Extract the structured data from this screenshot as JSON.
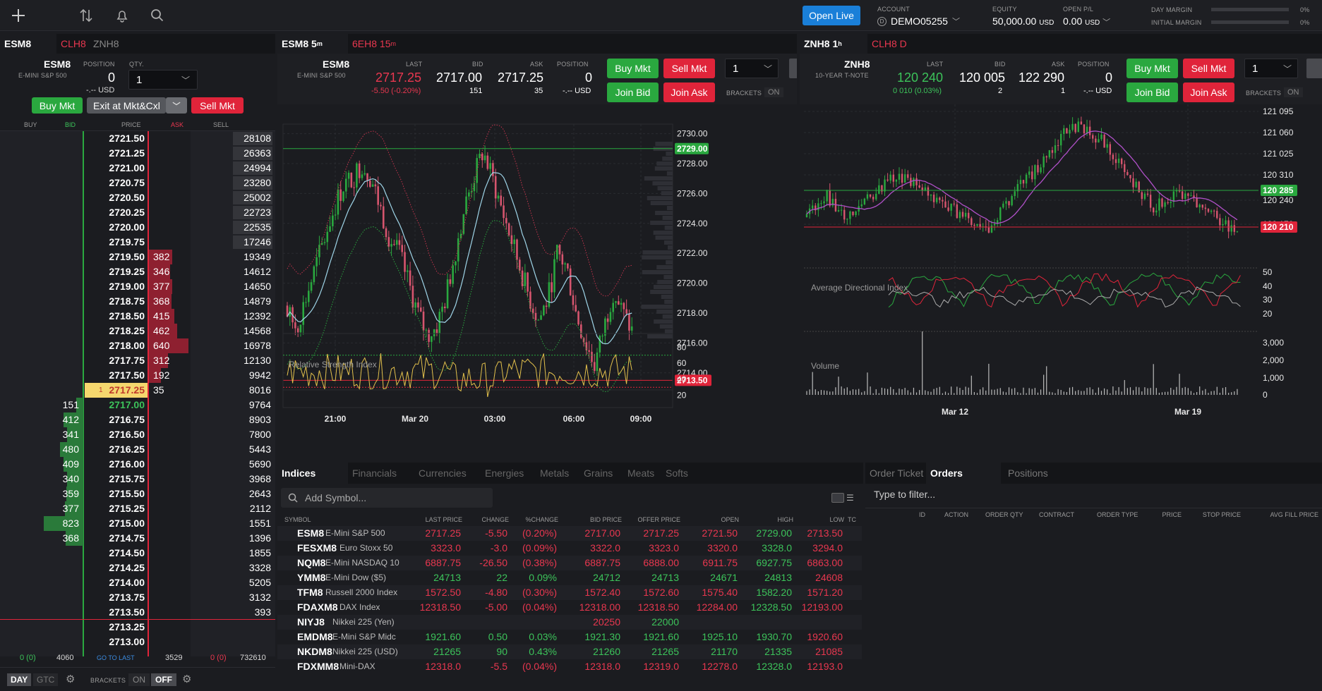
{
  "topbar": {
    "open_live": "Open Live",
    "account_label": "ACCOUNT",
    "account": "DEMO05255",
    "equity_label": "EQUITY",
    "equity": "50,000.00",
    "equity_unit": "USD",
    "openpl_label": "OPEN P/L",
    "openpl": "0.00",
    "openpl_unit": "USD",
    "day_margin_label": "DAY MARGIN",
    "day_margin_pct": "0%",
    "init_margin_label": "INITIAL MARGIN",
    "init_margin_pct": "0%"
  },
  "ladder": {
    "tabs": [
      "ESM8",
      "CLH8",
      "ZNH8"
    ],
    "symbol": "ESM8",
    "desc": "E-MINI S&P 500",
    "position_label": "POSITION",
    "position": "0",
    "position_usd": "-.-- USD",
    "qty_label": "QTY.",
    "qty": "1",
    "buy_mkt": "Buy Mkt",
    "exit": "Exit at Mkt&Cxl",
    "sell_mkt": "Sell Mkt",
    "headers": [
      "BUY",
      "BID",
      "PRICE",
      "ASK",
      "SELL"
    ],
    "rows": [
      {
        "price": "2721.50",
        "ask": "",
        "bid": "",
        "sell": "28108"
      },
      {
        "price": "2721.25",
        "ask": "",
        "bid": "",
        "sell": "26363"
      },
      {
        "price": "2721.00",
        "ask": "",
        "bid": "",
        "sell": "24994"
      },
      {
        "price": "2720.75",
        "ask": "",
        "bid": "",
        "sell": "23280"
      },
      {
        "price": "2720.50",
        "ask": "",
        "bid": "",
        "sell": "25002"
      },
      {
        "price": "2720.25",
        "ask": "",
        "bid": "",
        "sell": "22723"
      },
      {
        "price": "2720.00",
        "ask": "",
        "bid": "",
        "sell": "22535"
      },
      {
        "price": "2719.75",
        "ask": "",
        "bid": "",
        "sell": "17246"
      },
      {
        "price": "2719.50",
        "ask": "382",
        "bid": "",
        "sell": "19349"
      },
      {
        "price": "2719.25",
        "ask": "346",
        "bid": "",
        "sell": "14612"
      },
      {
        "price": "2719.00",
        "ask": "377",
        "bid": "",
        "sell": "14650"
      },
      {
        "price": "2718.75",
        "ask": "368",
        "bid": "",
        "sell": "14879"
      },
      {
        "price": "2718.50",
        "ask": "415",
        "bid": "",
        "sell": "12392"
      },
      {
        "price": "2718.25",
        "ask": "462",
        "bid": "",
        "sell": "14568"
      },
      {
        "price": "2718.00",
        "ask": "640",
        "bid": "",
        "sell": "16978"
      },
      {
        "price": "2717.75",
        "ask": "312",
        "bid": "",
        "sell": "12130"
      },
      {
        "price": "2717.50",
        "ask": "192",
        "bid": "",
        "sell": "9942"
      },
      {
        "price": "2717.25",
        "ask": "35",
        "bid": "",
        "sell": "8016",
        "last": true,
        "lastqty": "1"
      },
      {
        "price": "2717.00",
        "ask": "",
        "bid": "151",
        "sell": "9764"
      },
      {
        "price": "2716.75",
        "ask": "",
        "bid": "412",
        "sell": "8903"
      },
      {
        "price": "2716.50",
        "ask": "",
        "bid": "341",
        "sell": "7800"
      },
      {
        "price": "2716.25",
        "ask": "",
        "bid": "480",
        "sell": "5443"
      },
      {
        "price": "2716.00",
        "ask": "",
        "bid": "409",
        "sell": "5690"
      },
      {
        "price": "2715.75",
        "ask": "",
        "bid": "340",
        "sell": "3968"
      },
      {
        "price": "2715.50",
        "ask": "",
        "bid": "359",
        "sell": "2643"
      },
      {
        "price": "2715.25",
        "ask": "",
        "bid": "377",
        "sell": "2112"
      },
      {
        "price": "2715.00",
        "ask": "",
        "bid": "823",
        "sell": "1551"
      },
      {
        "price": "2714.75",
        "ask": "",
        "bid": "368",
        "sell": "1396"
      },
      {
        "price": "2714.50",
        "ask": "",
        "bid": "",
        "sell": "1855"
      },
      {
        "price": "2714.25",
        "ask": "",
        "bid": "",
        "sell": "3328"
      },
      {
        "price": "2714.00",
        "ask": "",
        "bid": "",
        "sell": "5205"
      },
      {
        "price": "2713.75",
        "ask": "",
        "bid": "",
        "sell": "3132"
      },
      {
        "price": "2713.50",
        "ask": "",
        "bid": "",
        "sell": "393"
      },
      {
        "price": "2713.25",
        "ask": "",
        "bid": "",
        "sell": ""
      },
      {
        "price": "2713.00",
        "ask": "",
        "bid": "",
        "sell": ""
      }
    ],
    "footer": {
      "buy": "0 (0)",
      "bid": "4060",
      "goto": "GO TO LAST",
      "ask": "3529",
      "sellpos": "0 (0)",
      "sell": "732610"
    },
    "bottom": {
      "day": "DAY",
      "gtc": "GTC",
      "brackets": "BRACKETS",
      "on": "ON",
      "off": "OFF"
    }
  },
  "chart1": {
    "tab_active": "ESM8 5",
    "tab_active_sup": "m",
    "tab2": "6EH8 15",
    "tab2_sup": "m",
    "symbol": "ESM8",
    "desc": "E-MINI S&P 500",
    "last_label": "LAST",
    "last": "2717.25",
    "last_chg": "-5.50 (-0.20%)",
    "bid_label": "BID",
    "bid": "2717.00",
    "bid_size": "151",
    "ask_label": "ASK",
    "ask": "2717.25",
    "ask_size": "35",
    "pos_label": "POSITION",
    "pos": "0",
    "pos_usd": "-.-- USD",
    "buy": "Buy Mkt",
    "sell": "Sell Mkt",
    "joinbid": "Join Bid",
    "joinask": "Join Ask",
    "qty": "1",
    "brackets": "BRACKETS",
    "on": "ON",
    "rsi_label": "Relative Strength Index",
    "price_ticks": [
      "2730.00",
      "2728.00",
      "2726.00",
      "2724.00",
      "2722.00",
      "2720.00",
      "2718.00",
      "2716.00",
      "2714.00"
    ],
    "tag_top": "2729.00",
    "tag_bot": "2713.50",
    "rsi_ticks": [
      "80",
      "60",
      "40",
      "20"
    ],
    "time_ticks": [
      "21:00",
      "Mar 20",
      "03:00",
      "06:00",
      "09:00"
    ]
  },
  "chart2": {
    "tab_active": "ZNH8 1",
    "tab_active_sup": "h",
    "tab2": "CLH8 D",
    "symbol": "ZNH8",
    "desc": "10-YEAR T-NOTE",
    "last_label": "LAST",
    "last": "120 240",
    "last_chg": "0 010 (0.03%)",
    "bid_label": "BID",
    "bid": "120 005",
    "bid_size": "2",
    "ask_label": "ASK",
    "ask": "122 290",
    "ask_size": "1",
    "pos_label": "POSITION",
    "pos": "0",
    "pos_usd": "-.-- USD",
    "buy": "Buy Mkt",
    "sell": "Sell Mkt",
    "joinbid": "Join Bid",
    "joinask": "Join Ask",
    "qty": "1",
    "brackets": "BRACKETS",
    "on": "ON",
    "adx_label": "Average Directional Index",
    "vol_label": "Volume",
    "price_ticks": [
      "121 095",
      "121 060",
      "121 025",
      "120 310",
      "120 240",
      "120 170"
    ],
    "tag_top": "120 285",
    "tag_bot": "120 210",
    "adx_ticks": [
      "50",
      "40",
      "30",
      "20"
    ],
    "vol_ticks": [
      "3,000",
      "2,000",
      "1,000",
      "0"
    ],
    "time_ticks": [
      "Mar 12",
      "Mar 19"
    ]
  },
  "watch": {
    "tabs": [
      "Indices",
      "Financials",
      "Currencies",
      "Energies",
      "Metals",
      "Grains",
      "Meats",
      "Softs"
    ],
    "search_placeholder": "Add Symbol...",
    "headers": [
      "SYMBOL",
      "LAST PRICE",
      "CHANGE",
      "%CHANGE",
      "BID PRICE",
      "OFFER PRICE",
      "OPEN",
      "HIGH",
      "LOW",
      "TC"
    ],
    "rows": [
      {
        "sym": "ESM8",
        "name": "E-Mini S&P 500",
        "last": "2717.25",
        "chg": "-5.50",
        "pct": "(0.20%)",
        "bid": "2717.00",
        "offer": "2717.25",
        "open": "2721.50",
        "high": "2729.00",
        "low": "2713.50",
        "dir": "neg"
      },
      {
        "sym": "FESXM8",
        "name": "Euro Stoxx 50",
        "last": "3323.0",
        "chg": "-3.0",
        "pct": "(0.09%)",
        "bid": "3322.0",
        "offer": "3323.0",
        "open": "3320.0",
        "high": "3328.0",
        "low": "3294.0",
        "dir": "neg"
      },
      {
        "sym": "NQM8",
        "name": "E-Mini NASDAQ 10",
        "last": "6887.75",
        "chg": "-26.50",
        "pct": "(0.38%)",
        "bid": "6887.75",
        "offer": "6888.00",
        "open": "6911.75",
        "high": "6927.75",
        "low": "6863.00",
        "dir": "neg"
      },
      {
        "sym": "YMM8",
        "name": "E-Mini Dow ($5)",
        "last": "24713",
        "chg": "22",
        "pct": "0.09%",
        "bid": "24712",
        "offer": "24713",
        "open": "24671",
        "high": "24813",
        "low": "24608",
        "dir": "pos"
      },
      {
        "sym": "TFM8",
        "name": "Russell 2000 Index",
        "last": "1572.50",
        "chg": "-4.80",
        "pct": "(0.30%)",
        "bid": "1572.40",
        "offer": "1572.60",
        "open": "1575.40",
        "high": "1582.20",
        "low": "1571.20",
        "dir": "neg"
      },
      {
        "sym": "FDAXM8",
        "name": "DAX Index",
        "last": "12318.50",
        "chg": "-5.00",
        "pct": "(0.04%)",
        "bid": "12318.00",
        "offer": "12318.50",
        "open": "12284.00",
        "high": "12328.50",
        "low": "12193.00",
        "dir": "neg"
      },
      {
        "sym": "NIYJ8",
        "name": "Nikkei 225 (Yen)",
        "last": "",
        "chg": "",
        "pct": "",
        "bid": "20250",
        "offer": "22000",
        "open": "",
        "high": "",
        "low": "",
        "dir": "mix"
      },
      {
        "sym": "EMDM8",
        "name": "E-Mini S&P Midc",
        "last": "1921.60",
        "chg": "0.50",
        "pct": "0.03%",
        "bid": "1921.30",
        "offer": "1921.60",
        "open": "1925.10",
        "high": "1930.70",
        "low": "1920.60",
        "dir": "pos"
      },
      {
        "sym": "NKDM8",
        "name": "Nikkei 225 (USD)",
        "last": "21265",
        "chg": "90",
        "pct": "0.43%",
        "bid": "21260",
        "offer": "21265",
        "open": "21170",
        "high": "21335",
        "low": "21085",
        "dir": "pos"
      },
      {
        "sym": "FDXMM8",
        "name": "Mini-DAX",
        "last": "12318.0",
        "chg": "-5.5",
        "pct": "(0.04%)",
        "bid": "12318.0",
        "offer": "12319.0",
        "open": "12278.0",
        "high": "12328.0",
        "low": "12193.0",
        "dir": "neg"
      }
    ]
  },
  "orders": {
    "tabs": [
      "Order Ticket",
      "Orders",
      "Positions"
    ],
    "filter_placeholder": "Type to filter...",
    "headers": [
      "ID",
      "ACTION",
      "ORDER QTY",
      "CONTRACT",
      "ORDER TYPE",
      "PRICE",
      "STOP PRICE",
      "AVG FILL PRICE"
    ]
  }
}
